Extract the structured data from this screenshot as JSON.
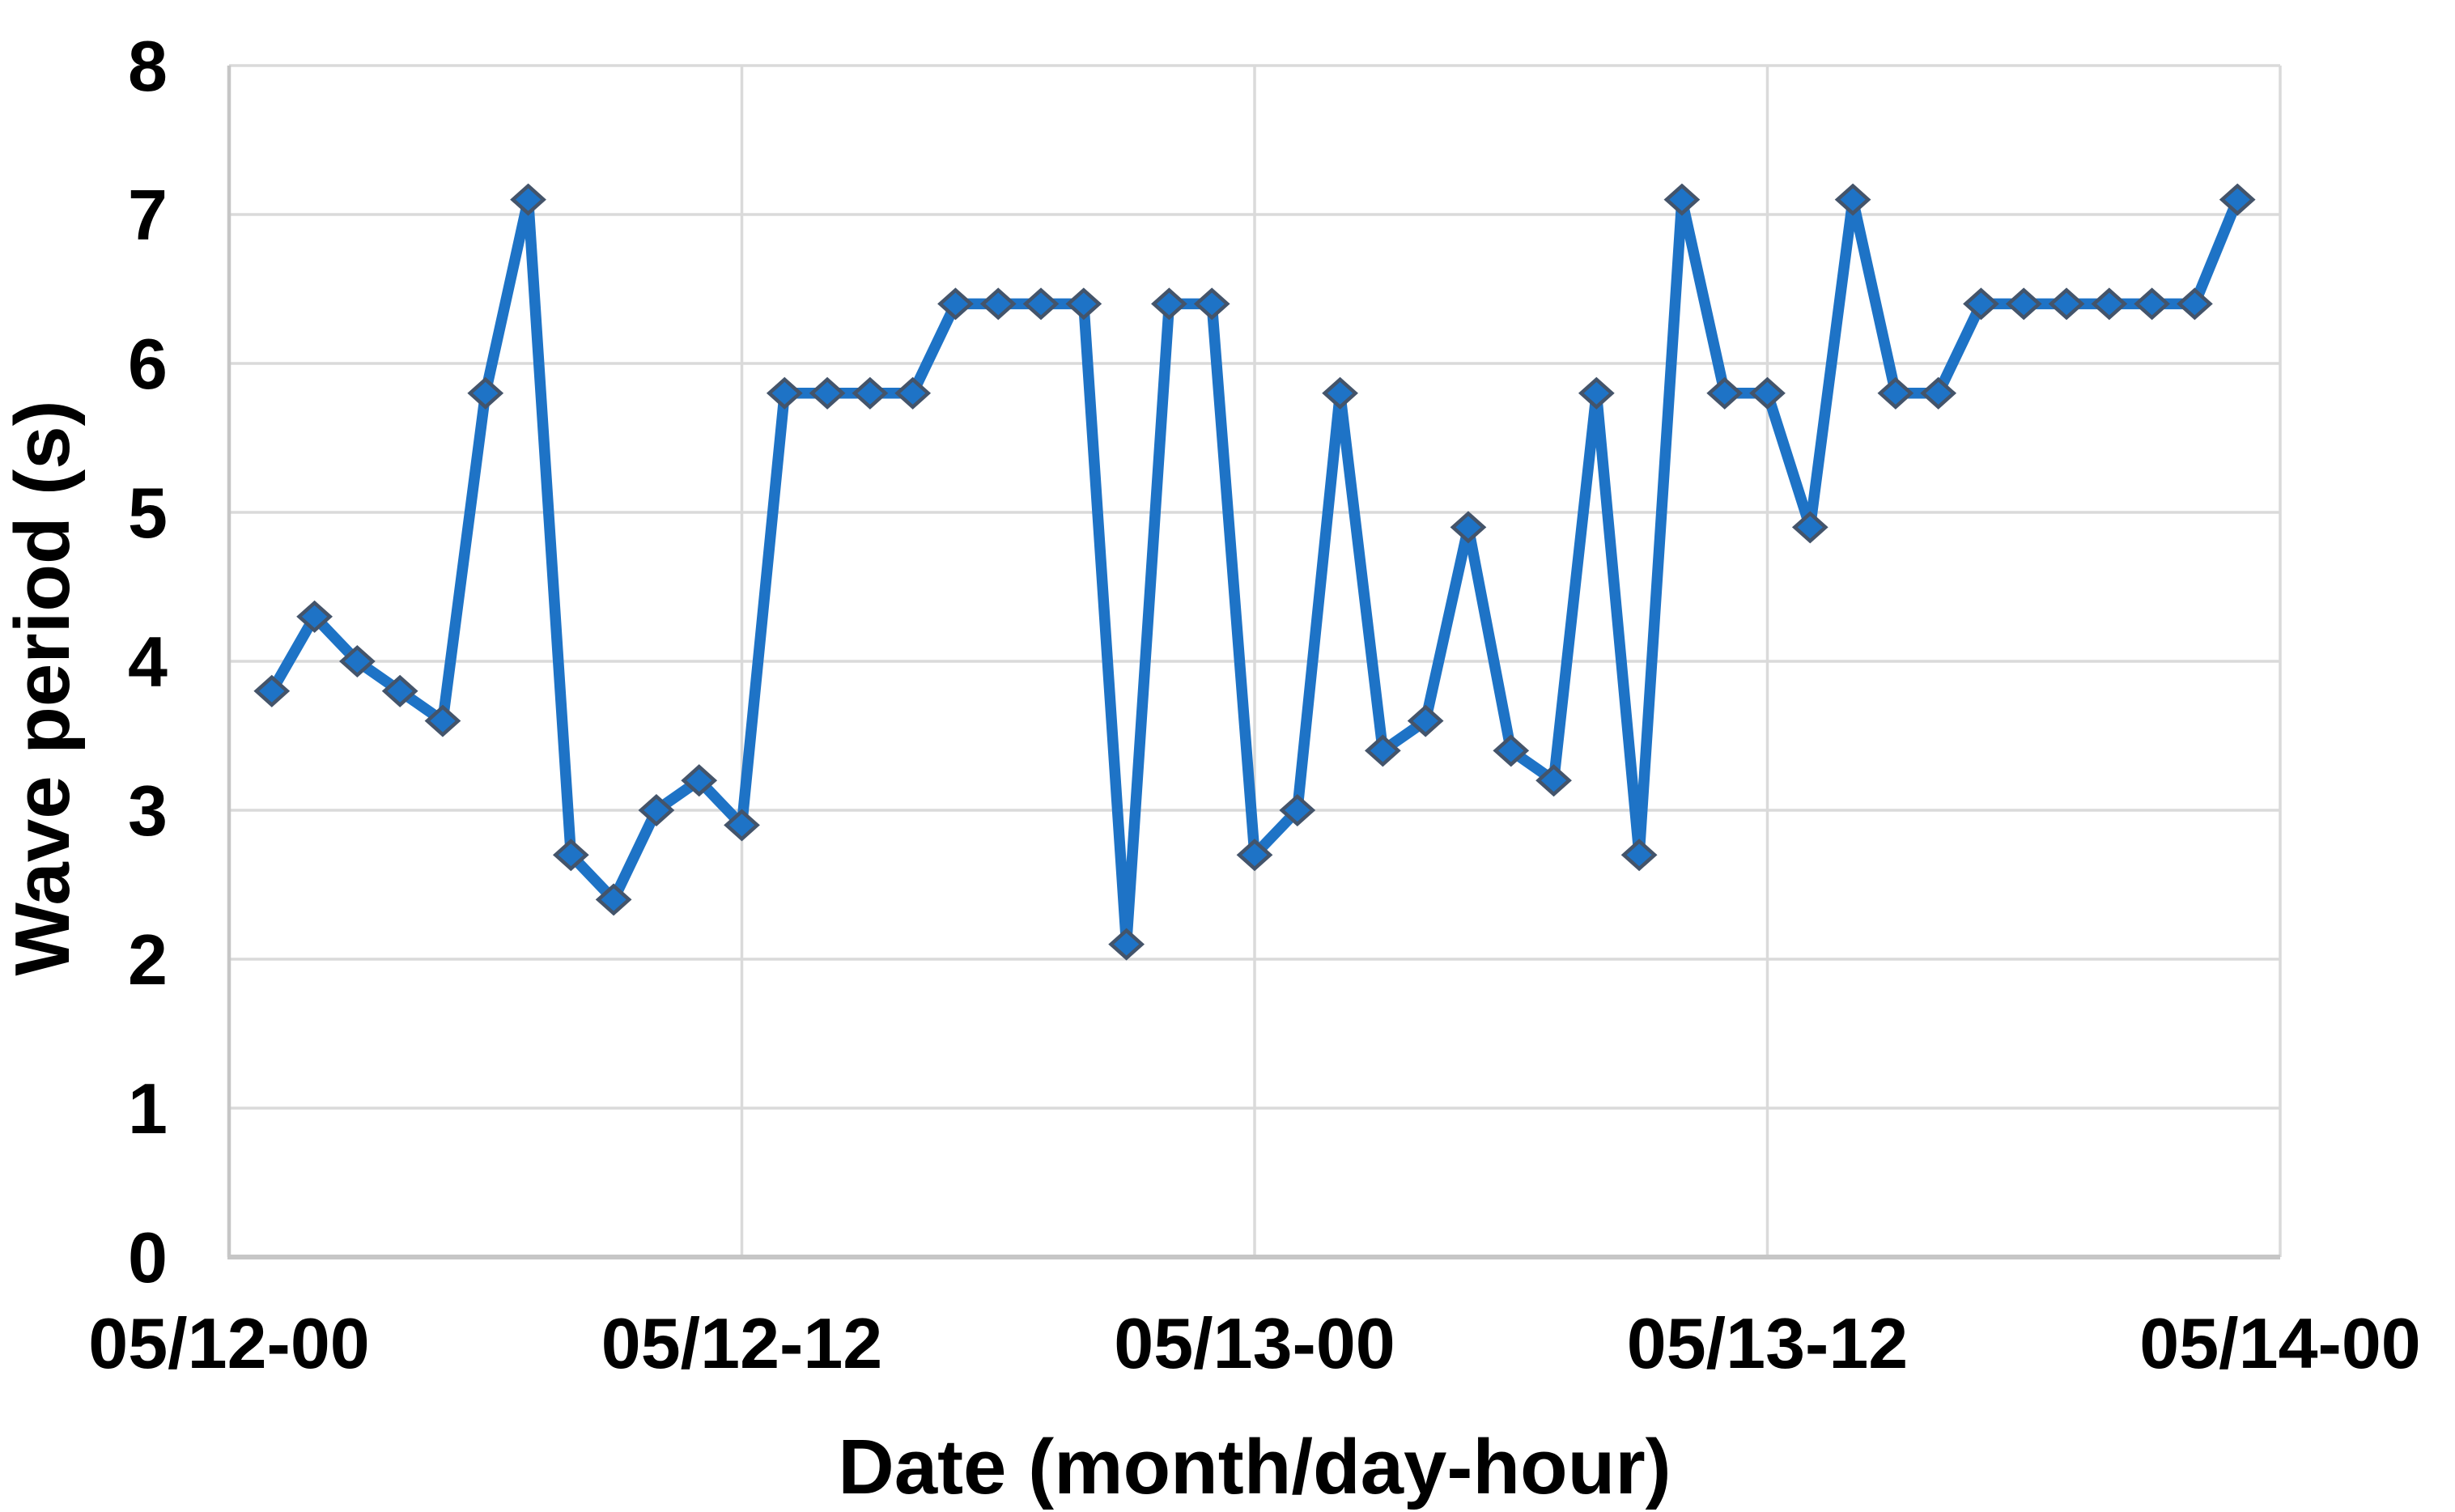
{
  "figure": {
    "background_color": "#FFFFFF",
    "has_title": false,
    "has_legend": false
  },
  "chart_data": {
    "type": "line",
    "title": "",
    "xlabel": "Date (month/day-hour)",
    "ylabel": "Wave period (s)",
    "ylim": [
      0,
      8
    ],
    "y_ticks": [
      0,
      1,
      2,
      3,
      4,
      5,
      6,
      7,
      8
    ],
    "x_axis_span_hours": 48,
    "x_tick_labels": [
      "05/12-00",
      "05/12-12",
      "05/13-00",
      "05/13-12",
      "05/14-00"
    ],
    "x_tick_hours": [
      0,
      12,
      24,
      36,
      48
    ],
    "grid": true,
    "legend_position": "none",
    "marker_shape": "diamond",
    "series": [
      {
        "name": "wave-period",
        "x_hours": [
          1,
          2,
          3,
          4,
          5,
          6,
          7,
          8,
          9,
          10,
          11,
          12,
          13,
          14,
          15,
          16,
          17,
          18,
          19,
          20,
          21,
          22,
          23,
          24,
          25,
          26,
          27,
          28,
          29,
          30,
          31,
          32,
          33,
          34,
          35,
          36,
          37,
          38,
          39,
          40,
          41,
          42,
          43,
          44,
          45,
          46,
          47
        ],
        "x_categories": [
          "05/12-01",
          "05/12-02",
          "05/12-03",
          "05/12-04",
          "05/12-05",
          "05/12-06",
          "05/12-07",
          "05/12-08",
          "05/12-09",
          "05/12-10",
          "05/12-11",
          "05/12-12",
          "05/12-13",
          "05/12-14",
          "05/12-15",
          "05/12-16",
          "05/12-17",
          "05/12-18",
          "05/12-19",
          "05/12-20",
          "05/12-21",
          "05/12-22",
          "05/12-23",
          "05/13-00",
          "05/13-01",
          "05/13-02",
          "05/13-03",
          "05/13-04",
          "05/13-05",
          "05/13-06",
          "05/13-07",
          "05/13-08",
          "05/13-09",
          "05/13-10",
          "05/13-11",
          "05/13-12",
          "05/13-13",
          "05/13-14",
          "05/13-15",
          "05/13-16",
          "05/13-17",
          "05/13-18",
          "05/13-19",
          "05/13-20",
          "05/13-21",
          "05/13-22",
          "05/13-23"
        ],
        "values": [
          3.8,
          4.3,
          4.0,
          3.8,
          3.6,
          5.8,
          7.1,
          2.7,
          2.4,
          3.0,
          3.2,
          2.9,
          5.8,
          5.8,
          5.8,
          5.8,
          6.4,
          6.4,
          6.4,
          6.4,
          2.1,
          6.4,
          6.4,
          2.7,
          3.0,
          5.8,
          3.4,
          3.6,
          4.9,
          3.4,
          3.2,
          5.8,
          2.7,
          7.1,
          5.8,
          5.8,
          4.9,
          7.1,
          5.8,
          5.8,
          6.4,
          6.4,
          6.4,
          6.4,
          6.4,
          6.4,
          7.1
        ]
      }
    ],
    "colors": {
      "line": "#1E73C6",
      "marker_fill": "#1E73C6",
      "marker_border": "#44546A",
      "gridline": "#DADADA",
      "axis_line": "#C6C6C6",
      "text": "#000000"
    }
  }
}
